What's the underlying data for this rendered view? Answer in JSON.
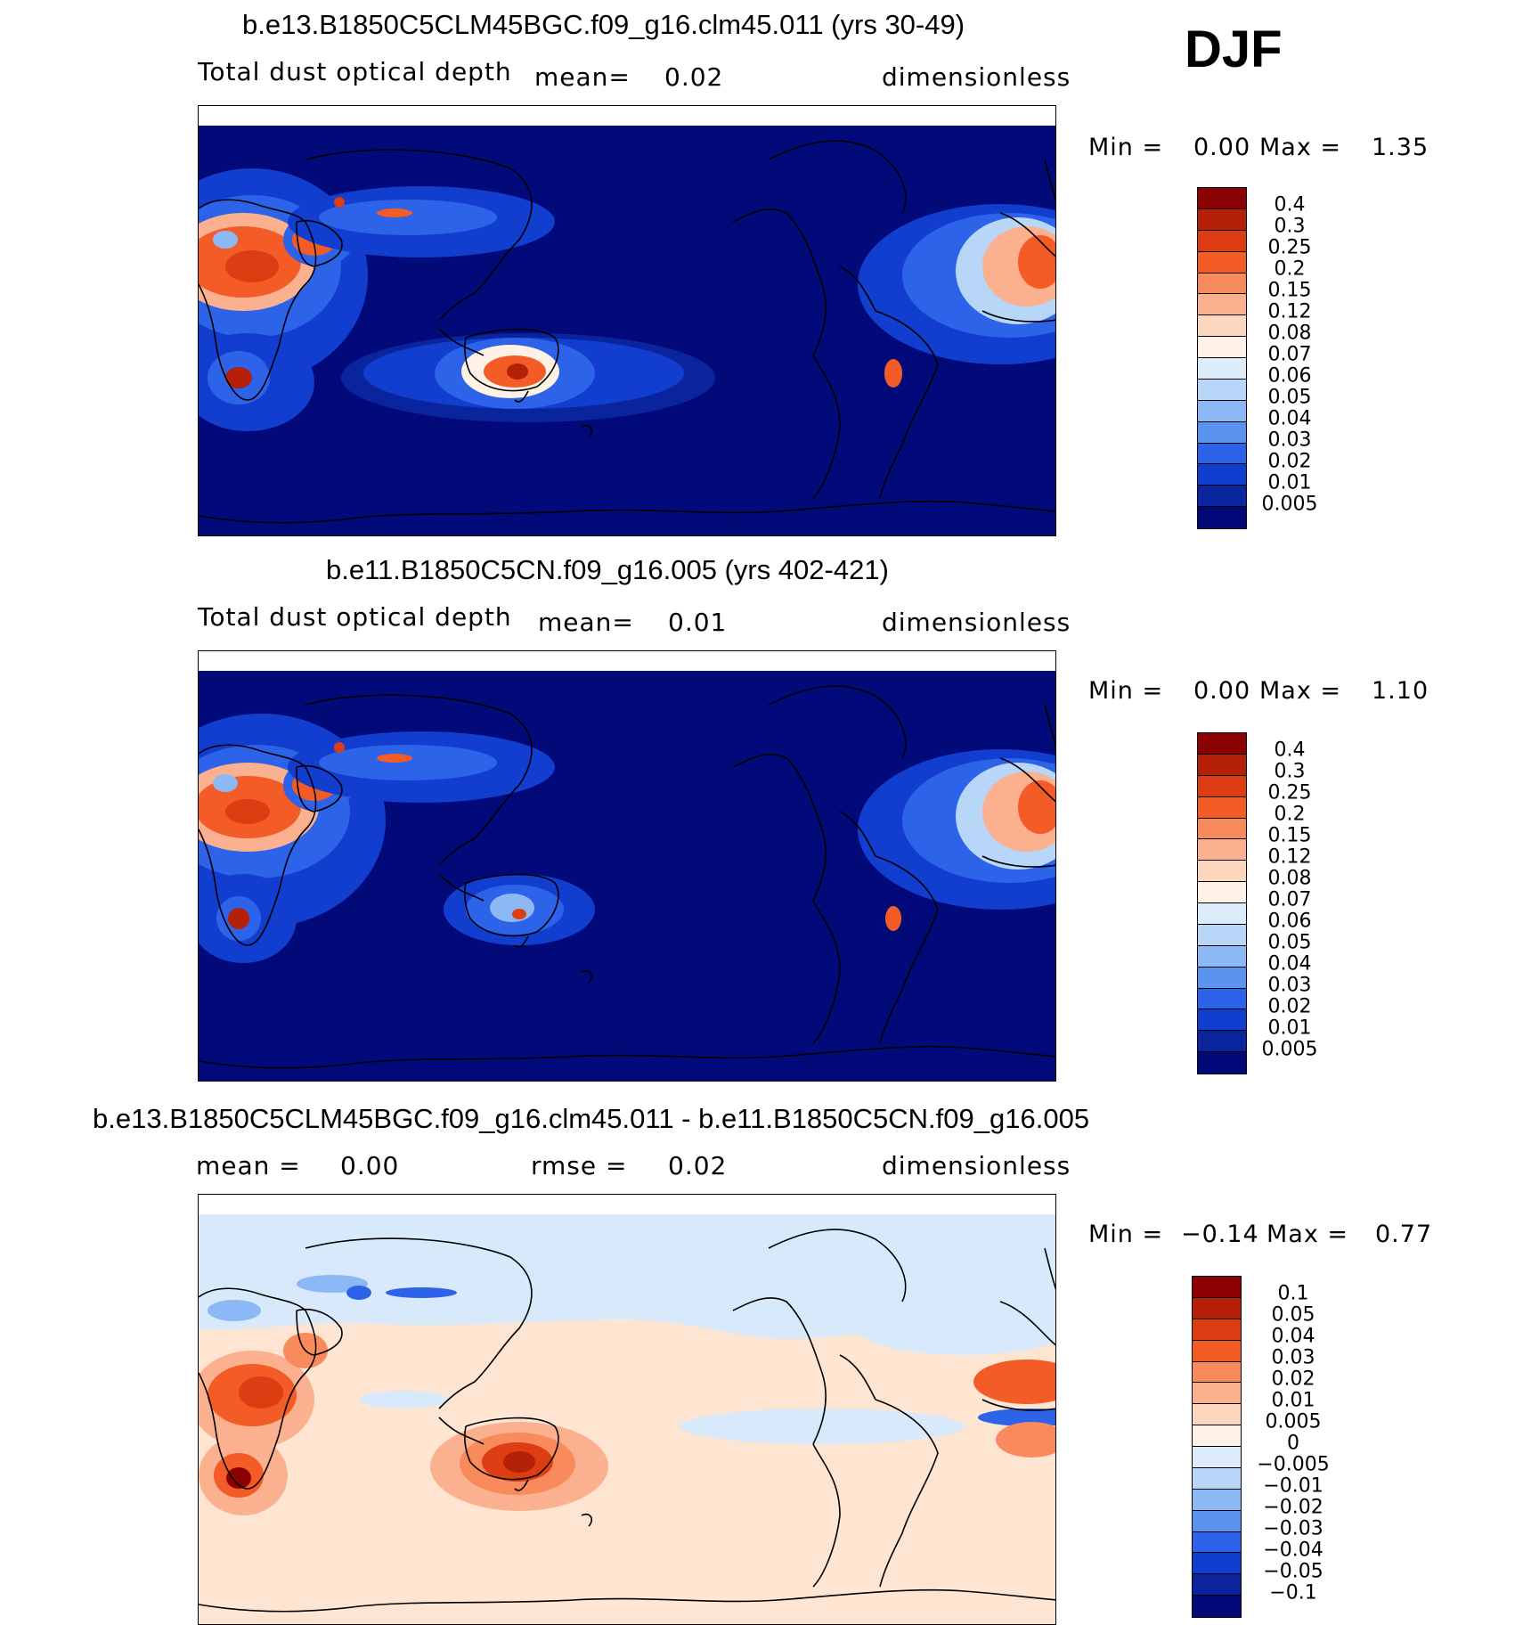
{
  "season": "DJF",
  "panels": [
    {
      "title": "b.e13.B1850C5CLM45BGC.f09_g16.clm45.011 (yrs 30-49)",
      "variable": "Total dust optical depth",
      "mean_label": "mean=",
      "mean_value": "0.02",
      "units": "dimensionless",
      "min_label": "Min =",
      "min_value": "0.00",
      "max_label": "Max =",
      "max_value": "1.35",
      "colorbar_labels": [
        "0.4",
        "0.3",
        "0.25",
        "0.2",
        "0.15",
        "0.12",
        "0.08",
        "0.07",
        "0.06",
        "0.05",
        "0.04",
        "0.03",
        "0.02",
        "0.01",
        "0.005"
      ],
      "colors": [
        "#8b0000",
        "#b52008",
        "#dd3d12",
        "#f35b27",
        "#f98a5c",
        "#fbb08f",
        "#fdd6be",
        "#fef1e6",
        "#dcecfb",
        "#b8d6f8",
        "#8cb9f5",
        "#5a93f0",
        "#2d63e8",
        "#123ed0",
        "#0a249e",
        "#020a7a"
      ]
    },
    {
      "title": "b.e11.B1850C5CN.f09_g16.005 (yrs 402-421)",
      "variable": "Total dust optical depth",
      "mean_label": "mean=",
      "mean_value": "0.01",
      "units": "dimensionless",
      "min_label": "Min =",
      "min_value": "0.00",
      "max_label": "Max =",
      "max_value": "1.10",
      "colorbar_labels": [
        "0.4",
        "0.3",
        "0.25",
        "0.2",
        "0.15",
        "0.12",
        "0.08",
        "0.07",
        "0.06",
        "0.05",
        "0.04",
        "0.03",
        "0.02",
        "0.01",
        "0.005"
      ],
      "colors": [
        "#8b0000",
        "#b52008",
        "#dd3d12",
        "#f35b27",
        "#f98a5c",
        "#fbb08f",
        "#fdd6be",
        "#fef1e6",
        "#dcecfb",
        "#b8d6f8",
        "#8cb9f5",
        "#5a93f0",
        "#2d63e8",
        "#123ed0",
        "#0a249e",
        "#020a7a"
      ]
    },
    {
      "title": "b.e13.B1850C5CLM45BGC.f09_g16.clm45.011 - b.e11.B1850C5CN.f09_g16.005",
      "mean_label": "mean =",
      "mean_value": "0.00",
      "rmse_label": "rmse =",
      "rmse_value": "0.02",
      "units": "dimensionless",
      "min_label": "Min =",
      "min_value": "−0.14",
      "max_label": "Max =",
      "max_value": "0.77",
      "colorbar_labels": [
        "0.1",
        "0.05",
        "0.04",
        "0.03",
        "0.02",
        "0.01",
        "0.005",
        "0",
        "−0.005",
        "−0.01",
        "−0.02",
        "−0.03",
        "−0.04",
        "−0.05",
        "−0.1"
      ],
      "colors": [
        "#8b0000",
        "#b52008",
        "#dd3d12",
        "#f35b27",
        "#f98a5c",
        "#fbb08f",
        "#fdd6be",
        "#fef1e6",
        "#dcecfb",
        "#b8d6f8",
        "#8cb9f5",
        "#5a93f0",
        "#2d63e8",
        "#123ed0",
        "#0a249e",
        "#020a7a"
      ]
    }
  ],
  "colors": {
    "ocean_low": "#020a7a",
    "diff_background": "#fde5d2",
    "diff_negative_light": "#d8e9fb"
  }
}
